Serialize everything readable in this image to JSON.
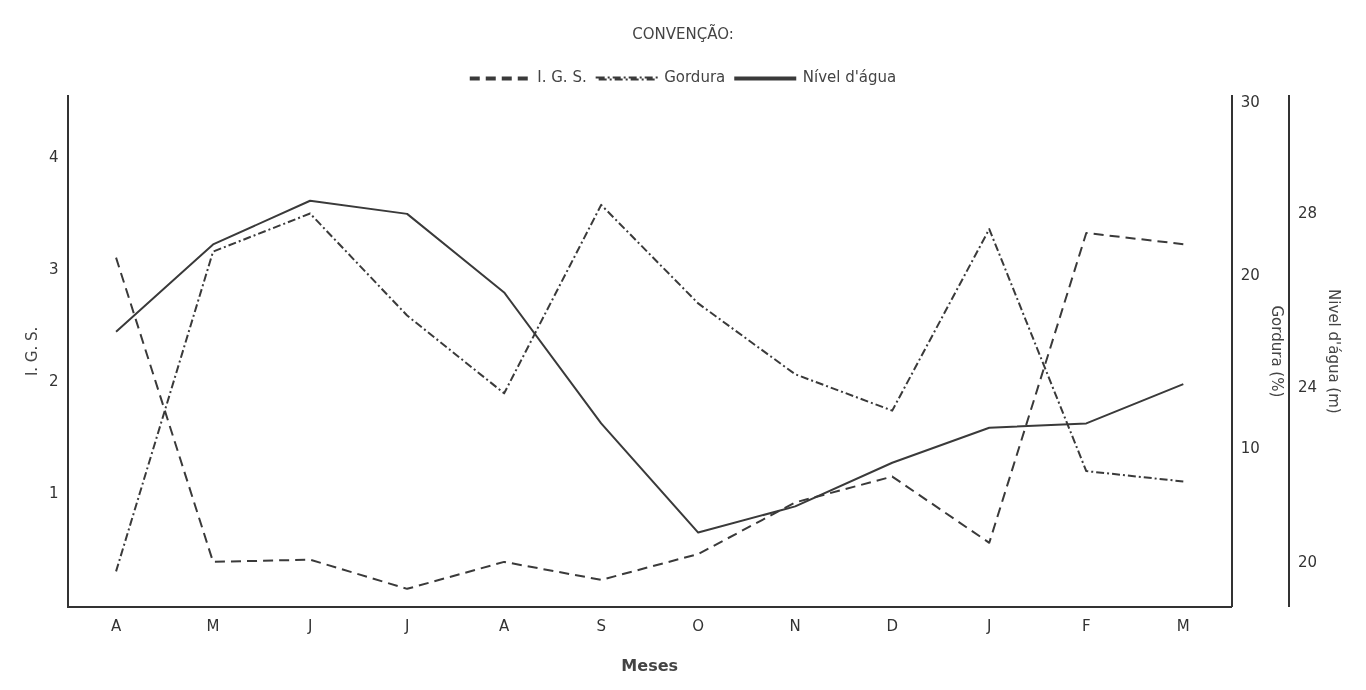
{
  "chart_data": {
    "type": "line",
    "legend_title": "CONVENÇÃO:",
    "xlabel": "Meses",
    "ylabel": "I. G. S.",
    "y2label": "Gordura (%)",
    "y3label": "Nivel d'água (m)",
    "categories": [
      "A",
      "M",
      "J",
      "J",
      "A",
      "S",
      "O",
      "N",
      "D",
      "J",
      "F",
      "M"
    ],
    "series": [
      {
        "name": "I. G. S.",
        "color": "#3a3a3a",
        "line_style": "dashed",
        "values": [
          3.11,
          0.4,
          0.42,
          0.16,
          0.4,
          0.24,
          0.47,
          0.93,
          1.16,
          0.57,
          3.33,
          3.23
        ]
      },
      {
        "name": "Gordura",
        "color": "#3a3a3a",
        "line_style": "dashdot",
        "axis": "y2",
        "values": [
          2.9,
          21.4,
          23.6,
          17.7,
          13.2,
          24.1,
          18.4,
          14.3,
          12.2,
          22.7,
          8.7,
          8.1
        ]
      },
      {
        "name": "Nível d'água",
        "color": "#3a3a3a",
        "line_style": "solid",
        "axis": "y3",
        "values": [
          25.3,
          27.3,
          28.3,
          28.0,
          26.2,
          23.2,
          20.7,
          21.3,
          22.3,
          23.1,
          23.2,
          24.1
        ]
      }
    ],
    "ylim": [
      0,
      4.55
    ],
    "yticks": [
      1,
      2,
      3,
      4
    ],
    "y2lim": [
      0.85,
      30.4
    ],
    "y2ticks": [
      10,
      20,
      30
    ],
    "y3lim": [
      19,
      30.7
    ],
    "y3ticks": [
      20,
      24,
      28
    ],
    "grid": false,
    "legend": "top",
    "marker": "none"
  }
}
